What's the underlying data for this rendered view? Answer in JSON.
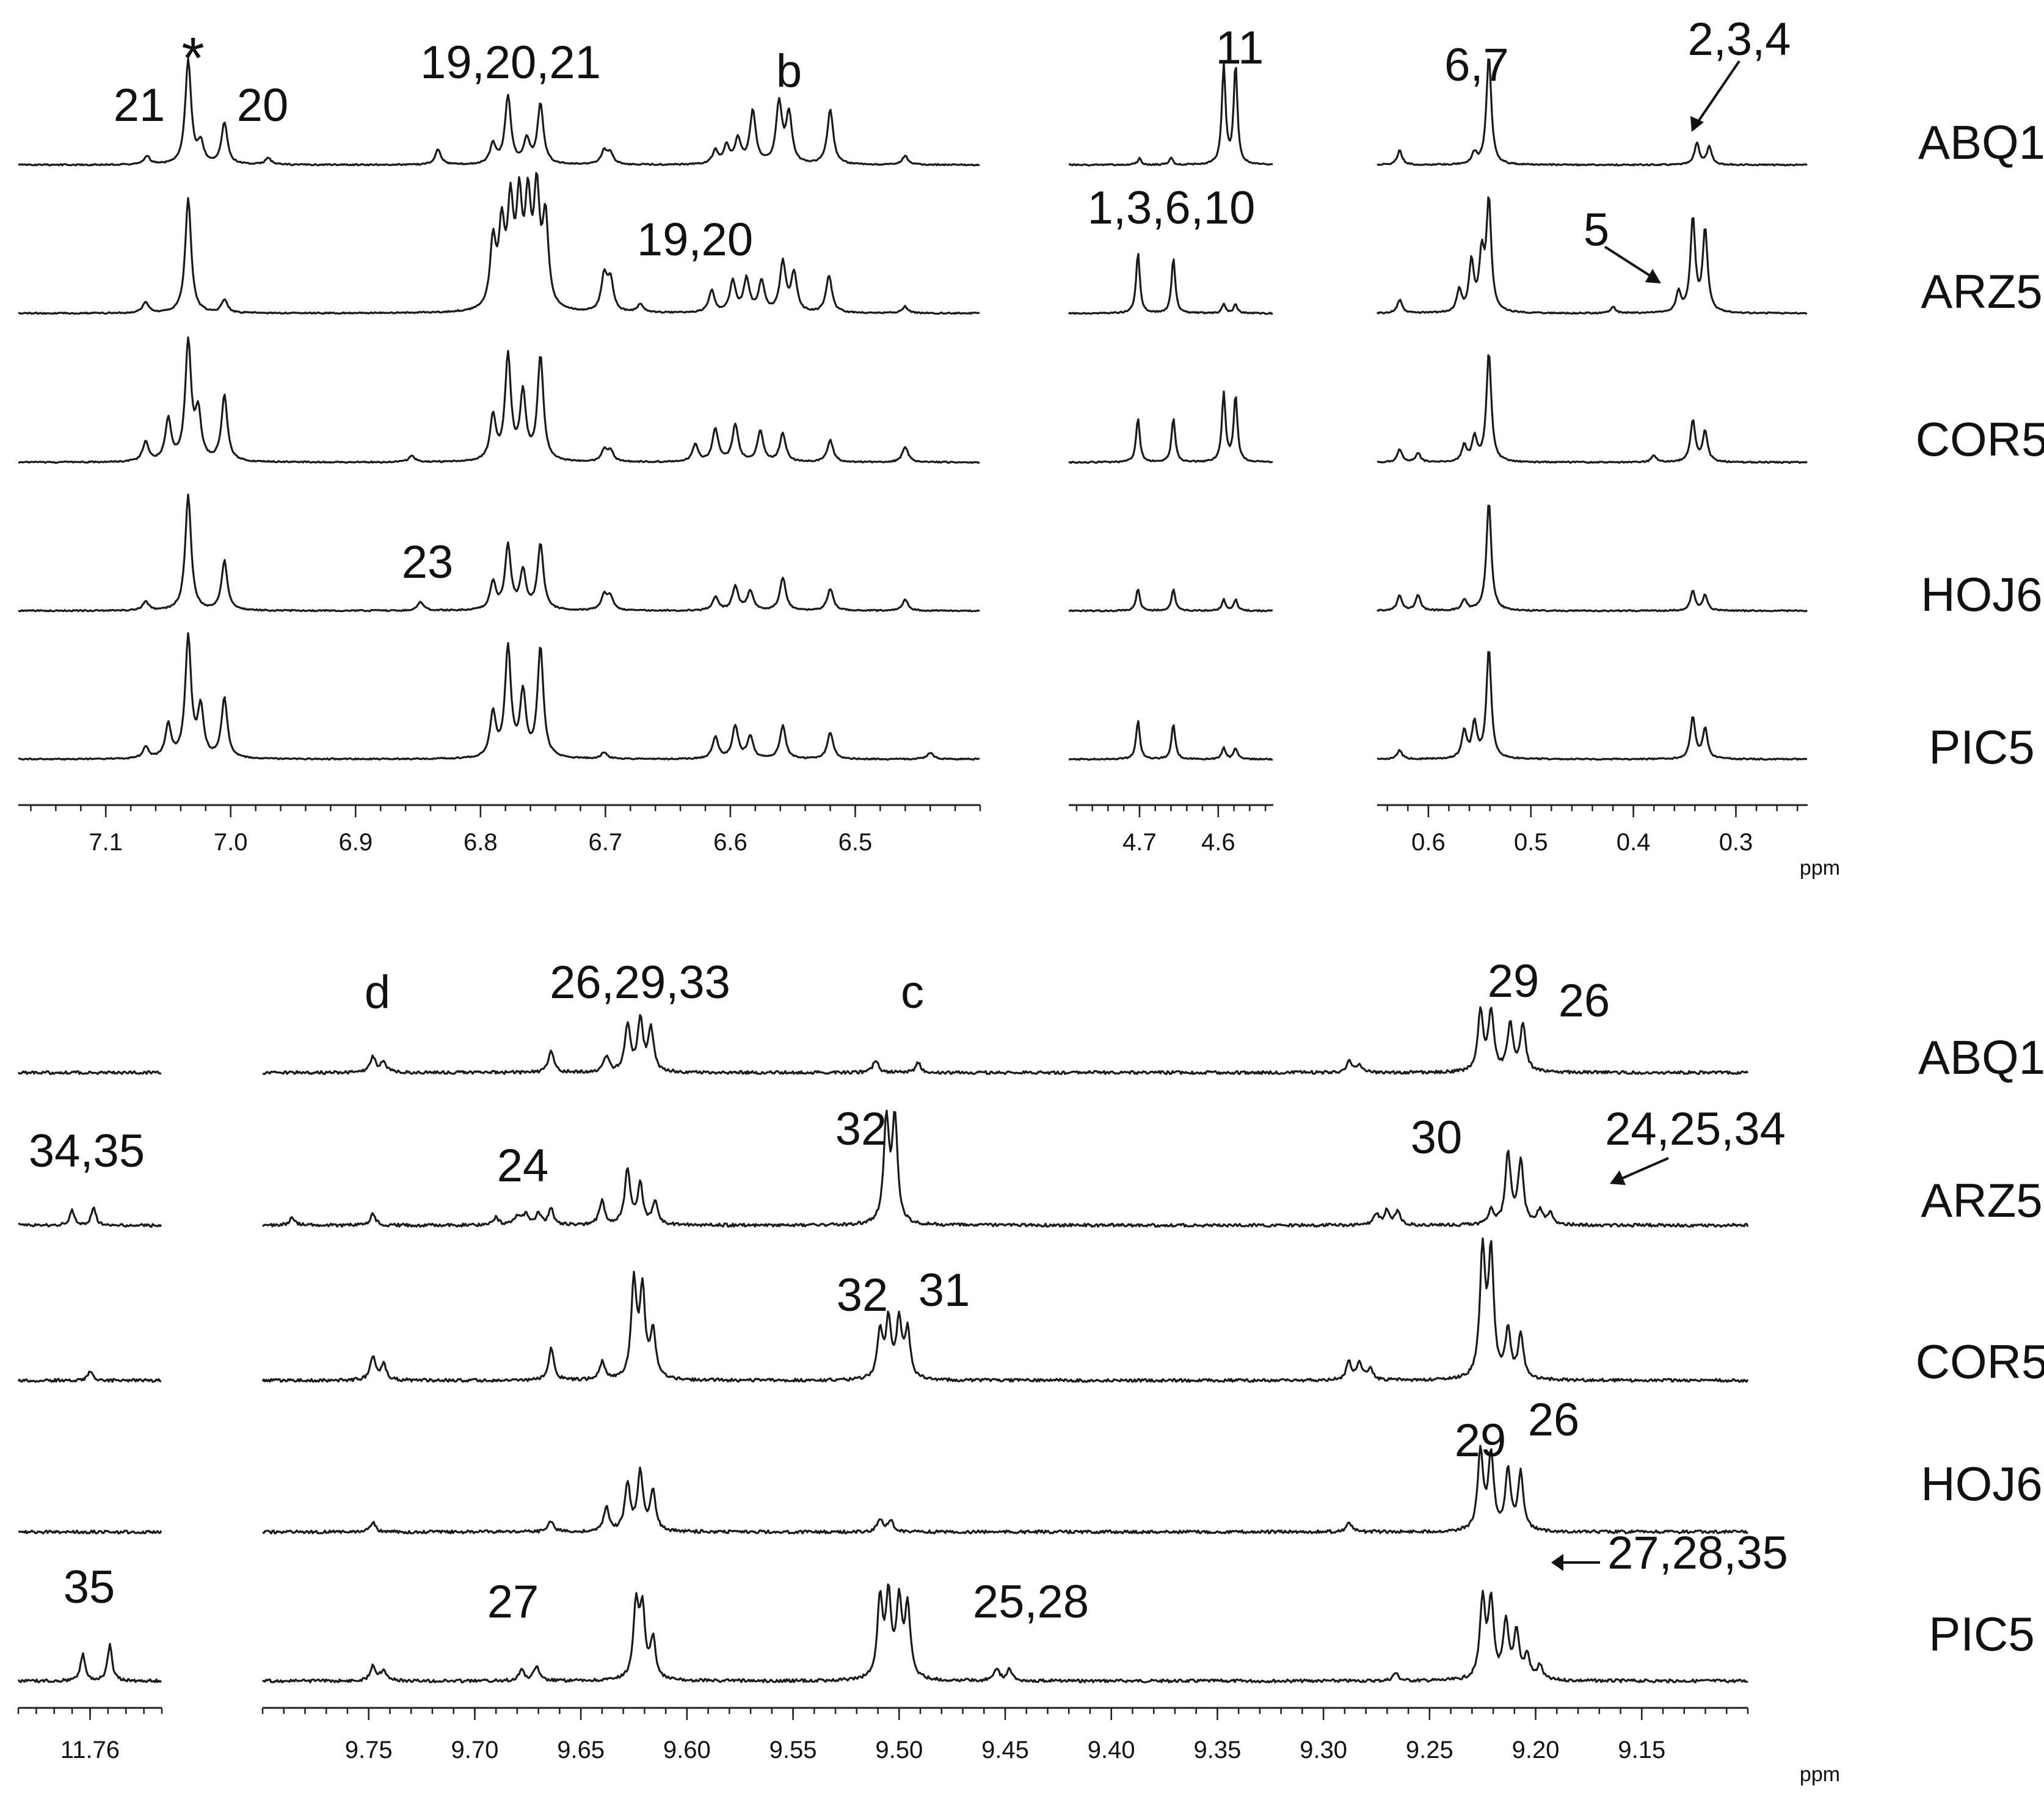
{
  "chart_data": [
    {
      "type": "line",
      "panel": "top",
      "x_unit": "ppm",
      "samples": [
        "ABQ1",
        "ARZ5",
        "COR5",
        "HOJ6",
        "PIC5"
      ],
      "segments": [
        {
          "ticks": [
            "7.1",
            "7.0",
            "6.9",
            "6.8",
            "6.7",
            "6.6",
            "6.5"
          ],
          "xlim": [
            7.17,
            6.4
          ]
        },
        {
          "ticks": [
            "4.7",
            "4.6"
          ],
          "xlim": [
            4.79,
            4.53
          ]
        },
        {
          "ticks": [
            "0.6",
            "0.5",
            "0.4",
            "0.3"
          ],
          "xlim": [
            0.65,
            0.23
          ]
        }
      ],
      "peaks": {
        "ABQ1": [
          [
            7.067,
            0.08
          ],
          [
            7.034,
            0.95
          ],
          [
            7.024,
            0.18
          ],
          [
            7.005,
            0.38
          ],
          [
            6.97,
            0.06
          ],
          [
            6.834,
            0.14
          ],
          [
            6.79,
            0.18
          ],
          [
            6.778,
            0.62
          ],
          [
            6.763,
            0.22
          ],
          [
            6.752,
            0.55
          ],
          [
            6.701,
            0.12
          ],
          [
            6.696,
            0.1
          ],
          [
            6.612,
            0.12
          ],
          [
            6.603,
            0.16
          ],
          [
            6.594,
            0.22
          ],
          [
            6.582,
            0.48
          ],
          [
            6.561,
            0.55
          ],
          [
            6.553,
            0.45
          ],
          [
            6.52,
            0.5
          ],
          [
            6.46,
            0.08
          ],
          [
            4.7,
            0.06
          ],
          [
            4.66,
            0.06
          ],
          [
            4.593,
            0.9
          ],
          [
            4.578,
            0.9
          ],
          [
            0.628,
            0.13
          ],
          [
            0.555,
            0.1
          ],
          [
            0.541,
            1.0
          ],
          [
            0.338,
            0.2
          ],
          [
            0.326,
            0.16
          ]
        ],
        "ARZ5": [
          [
            7.068,
            0.1
          ],
          [
            7.034,
            1.05
          ],
          [
            7.005,
            0.12
          ],
          [
            6.79,
            0.6
          ],
          [
            6.783,
            0.7
          ],
          [
            6.776,
            0.88
          ],
          [
            6.769,
            0.9
          ],
          [
            6.762,
            0.9
          ],
          [
            6.755,
            1.0
          ],
          [
            6.748,
            0.8
          ],
          [
            6.701,
            0.32
          ],
          [
            6.696,
            0.28
          ],
          [
            6.672,
            0.08
          ],
          [
            6.615,
            0.2
          ],
          [
            6.598,
            0.28
          ],
          [
            6.587,
            0.3
          ],
          [
            6.575,
            0.28
          ],
          [
            6.558,
            0.45
          ],
          [
            6.549,
            0.35
          ],
          [
            6.521,
            0.34
          ],
          [
            6.46,
            0.06
          ],
          [
            4.702,
            0.55
          ],
          [
            4.657,
            0.5
          ],
          [
            4.593,
            0.08
          ],
          [
            4.578,
            0.08
          ],
          [
            0.628,
            0.12
          ],
          [
            0.57,
            0.2
          ],
          [
            0.558,
            0.45
          ],
          [
            0.548,
            0.5
          ],
          [
            0.541,
            1.0
          ],
          [
            0.42,
            0.06
          ],
          [
            0.356,
            0.18
          ],
          [
            0.342,
            0.85
          ],
          [
            0.33,
            0.75
          ]
        ],
        "COR5": [
          [
            7.068,
            0.18
          ],
          [
            7.05,
            0.38
          ],
          [
            7.034,
            1.08
          ],
          [
            7.026,
            0.42
          ],
          [
            7.005,
            0.6
          ],
          [
            6.855,
            0.06
          ],
          [
            6.79,
            0.4
          ],
          [
            6.778,
            0.95
          ],
          [
            6.766,
            0.6
          ],
          [
            6.752,
            0.95
          ],
          [
            6.701,
            0.1
          ],
          [
            6.696,
            0.1
          ],
          [
            6.628,
            0.16
          ],
          [
            6.612,
            0.3
          ],
          [
            6.596,
            0.34
          ],
          [
            6.576,
            0.28
          ],
          [
            6.558,
            0.26
          ],
          [
            6.52,
            0.2
          ],
          [
            6.46,
            0.14
          ],
          [
            4.702,
            0.4
          ],
          [
            4.657,
            0.4
          ],
          [
            4.593,
            0.62
          ],
          [
            4.578,
            0.6
          ],
          [
            0.628,
            0.12
          ],
          [
            0.61,
            0.08
          ],
          [
            0.565,
            0.15
          ],
          [
            0.555,
            0.22
          ],
          [
            0.541,
            1.0
          ],
          [
            0.38,
            0.06
          ],
          [
            0.342,
            0.38
          ],
          [
            0.33,
            0.28
          ]
        ],
        "HOJ6": [
          [
            7.068,
            0.08
          ],
          [
            7.034,
            1.05
          ],
          [
            7.005,
            0.45
          ],
          [
            6.848,
            0.08
          ],
          [
            6.79,
            0.25
          ],
          [
            6.778,
            0.58
          ],
          [
            6.766,
            0.35
          ],
          [
            6.752,
            0.6
          ],
          [
            6.701,
            0.14
          ],
          [
            6.696,
            0.12
          ],
          [
            6.612,
            0.12
          ],
          [
            6.596,
            0.22
          ],
          [
            6.584,
            0.18
          ],
          [
            6.558,
            0.3
          ],
          [
            6.52,
            0.2
          ],
          [
            6.46,
            0.1
          ],
          [
            4.702,
            0.2
          ],
          [
            4.657,
            0.2
          ],
          [
            4.593,
            0.1
          ],
          [
            4.578,
            0.1
          ],
          [
            0.628,
            0.14
          ],
          [
            0.61,
            0.14
          ],
          [
            0.565,
            0.1
          ],
          [
            0.541,
            1.0
          ],
          [
            0.342,
            0.18
          ],
          [
            0.33,
            0.14
          ]
        ],
        "PIC5": [
          [
            7.068,
            0.1
          ],
          [
            7.05,
            0.3
          ],
          [
            7.034,
            1.1
          ],
          [
            7.024,
            0.45
          ],
          [
            7.005,
            0.55
          ],
          [
            6.79,
            0.4
          ],
          [
            6.778,
            1.0
          ],
          [
            6.766,
            0.58
          ],
          [
            6.752,
            1.0
          ],
          [
            6.701,
            0.06
          ],
          [
            6.612,
            0.2
          ],
          [
            6.596,
            0.3
          ],
          [
            6.584,
            0.2
          ],
          [
            6.558,
            0.3
          ],
          [
            6.52,
            0.24
          ],
          [
            6.44,
            0.06
          ],
          [
            4.702,
            0.35
          ],
          [
            4.657,
            0.32
          ],
          [
            4.593,
            0.1
          ],
          [
            4.578,
            0.1
          ],
          [
            0.628,
            0.08
          ],
          [
            0.565,
            0.25
          ],
          [
            0.555,
            0.32
          ],
          [
            0.541,
            1.0
          ],
          [
            0.342,
            0.38
          ],
          [
            0.33,
            0.28
          ]
        ]
      },
      "annotations": [
        {
          "text": "21",
          "sample": "ABQ1"
        },
        {
          "text": "*",
          "sample": "ABQ1"
        },
        {
          "text": "20",
          "sample": "ABQ1"
        },
        {
          "text": "19,20,21",
          "sample": "ABQ1"
        },
        {
          "text": "b",
          "sample": "ABQ1"
        },
        {
          "text": "11",
          "sample": "ABQ1"
        },
        {
          "text": "6,7",
          "sample": "ABQ1"
        },
        {
          "text": "2,3,4",
          "sample": "ABQ1",
          "arrow": true
        },
        {
          "text": "19,20",
          "sample": "ARZ5"
        },
        {
          "text": "1,3,6,10",
          "sample": "ARZ5"
        },
        {
          "text": "5",
          "sample": "ARZ5",
          "arrow": true
        },
        {
          "text": "23",
          "sample": "HOJ6"
        }
      ]
    },
    {
      "type": "line",
      "panel": "bottom",
      "x_unit": "ppm",
      "samples": [
        "ABQ1",
        "ARZ5",
        "COR5",
        "HOJ6",
        "PIC5"
      ],
      "segments": [
        {
          "ticks": [
            "11.76"
          ],
          "xlim": [
            11.8,
            11.72
          ]
        },
        {
          "ticks": [
            "9.75",
            "9.70",
            "9.65",
            "9.60",
            "9.55",
            "9.50",
            "9.45",
            "9.40",
            "9.35",
            "9.30",
            "9.25",
            "9.20",
            "9.15"
          ],
          "xlim": [
            9.8,
            9.1
          ]
        }
      ],
      "peaks": {
        "ABQ1": [
          [
            9.748,
            0.2
          ],
          [
            9.743,
            0.14
          ],
          [
            9.664,
            0.28
          ],
          [
            9.638,
            0.2
          ],
          [
            9.628,
            0.6
          ],
          [
            9.622,
            0.65
          ],
          [
            9.617,
            0.55
          ],
          [
            9.511,
            0.16
          ],
          [
            9.491,
            0.12
          ],
          [
            9.288,
            0.14
          ],
          [
            9.283,
            0.1
          ],
          [
            9.226,
            0.75
          ],
          [
            9.221,
            0.75
          ],
          [
            9.212,
            0.6
          ],
          [
            9.206,
            0.6
          ]
        ],
        "ARZ5": [
          [
            11.77,
            0.18
          ],
          [
            11.758,
            0.22
          ],
          [
            9.786,
            0.1
          ],
          [
            9.748,
            0.14
          ],
          [
            9.69,
            0.1
          ],
          [
            9.68,
            0.12
          ],
          [
            9.676,
            0.14
          ],
          [
            9.67,
            0.14
          ],
          [
            9.664,
            0.2
          ],
          [
            9.64,
            0.3
          ],
          [
            9.628,
            0.7
          ],
          [
            9.622,
            0.5
          ],
          [
            9.615,
            0.3
          ],
          [
            9.506,
            1.3
          ],
          [
            9.502,
            1.3
          ],
          [
            9.275,
            0.14
          ],
          [
            9.27,
            0.18
          ],
          [
            9.265,
            0.16
          ],
          [
            9.221,
            0.18
          ],
          [
            9.213,
            0.9
          ],
          [
            9.207,
            0.8
          ],
          [
            9.198,
            0.18
          ],
          [
            9.193,
            0.14
          ]
        ],
        "COR5": [
          [
            11.76,
            0.12
          ],
          [
            9.748,
            0.3
          ],
          [
            9.743,
            0.2
          ],
          [
            9.664,
            0.4
          ],
          [
            9.64,
            0.22
          ],
          [
            9.625,
            1.2
          ],
          [
            9.621,
            1.1
          ],
          [
            9.616,
            0.6
          ],
          [
            9.509,
            0.6
          ],
          [
            9.505,
            0.72
          ],
          [
            9.5,
            0.72
          ],
          [
            9.496,
            0.6
          ],
          [
            9.288,
            0.22
          ],
          [
            9.283,
            0.22
          ],
          [
            9.278,
            0.14
          ],
          [
            9.225,
            1.6
          ],
          [
            9.221,
            1.55
          ],
          [
            9.213,
            0.6
          ],
          [
            9.207,
            0.55
          ]
        ],
        "HOJ6": [
          [
            9.748,
            0.12
          ],
          [
            9.664,
            0.14
          ],
          [
            9.638,
            0.3
          ],
          [
            9.628,
            0.6
          ],
          [
            9.622,
            0.75
          ],
          [
            9.616,
            0.5
          ],
          [
            9.509,
            0.16
          ],
          [
            9.504,
            0.14
          ],
          [
            9.288,
            0.12
          ],
          [
            9.226,
            1.0
          ],
          [
            9.221,
            0.95
          ],
          [
            9.213,
            0.75
          ],
          [
            9.207,
            0.72
          ]
        ],
        "PIC5": [
          [
            11.764,
            0.35
          ],
          [
            11.749,
            0.45
          ],
          [
            9.748,
            0.2
          ],
          [
            9.743,
            0.14
          ],
          [
            9.678,
            0.14
          ],
          [
            9.671,
            0.18
          ],
          [
            9.624,
            0.9
          ],
          [
            9.621,
            0.85
          ],
          [
            9.616,
            0.5
          ],
          [
            9.509,
            1.0
          ],
          [
            9.505,
            1.0
          ],
          [
            9.5,
            0.95
          ],
          [
            9.496,
            0.9
          ],
          [
            9.454,
            0.16
          ],
          [
            9.448,
            0.14
          ],
          [
            9.266,
            0.1
          ],
          [
            9.225,
            1.0
          ],
          [
            9.221,
            0.95
          ],
          [
            9.214,
            0.7
          ],
          [
            9.209,
            0.6
          ],
          [
            9.204,
            0.3
          ],
          [
            9.198,
            0.18
          ]
        ]
      },
      "annotations": [
        {
          "text": "d",
          "sample": "ABQ1"
        },
        {
          "text": "26,29,33",
          "sample": "ABQ1"
        },
        {
          "text": "c",
          "sample": "ABQ1"
        },
        {
          "text": "29",
          "sample": "ABQ1"
        },
        {
          "text": "26",
          "sample": "ABQ1"
        },
        {
          "text": "34,35",
          "sample": "ARZ5"
        },
        {
          "text": "24",
          "sample": "ARZ5"
        },
        {
          "text": "32",
          "sample": "ARZ5"
        },
        {
          "text": "30",
          "sample": "ARZ5"
        },
        {
          "text": "24,25,34",
          "sample": "ARZ5",
          "arrow": true
        },
        {
          "text": "32",
          "sample": "COR5"
        },
        {
          "text": "31",
          "sample": "COR5"
        },
        {
          "text": "29",
          "sample": "HOJ6"
        },
        {
          "text": "26",
          "sample": "HOJ6"
        },
        {
          "text": "35",
          "sample": "PIC5"
        },
        {
          "text": "27",
          "sample": "PIC5"
        },
        {
          "text": "25,28",
          "sample": "PIC5"
        },
        {
          "text": "27,28,35",
          "sample": "PIC5",
          "arrow": true
        }
      ]
    }
  ]
}
